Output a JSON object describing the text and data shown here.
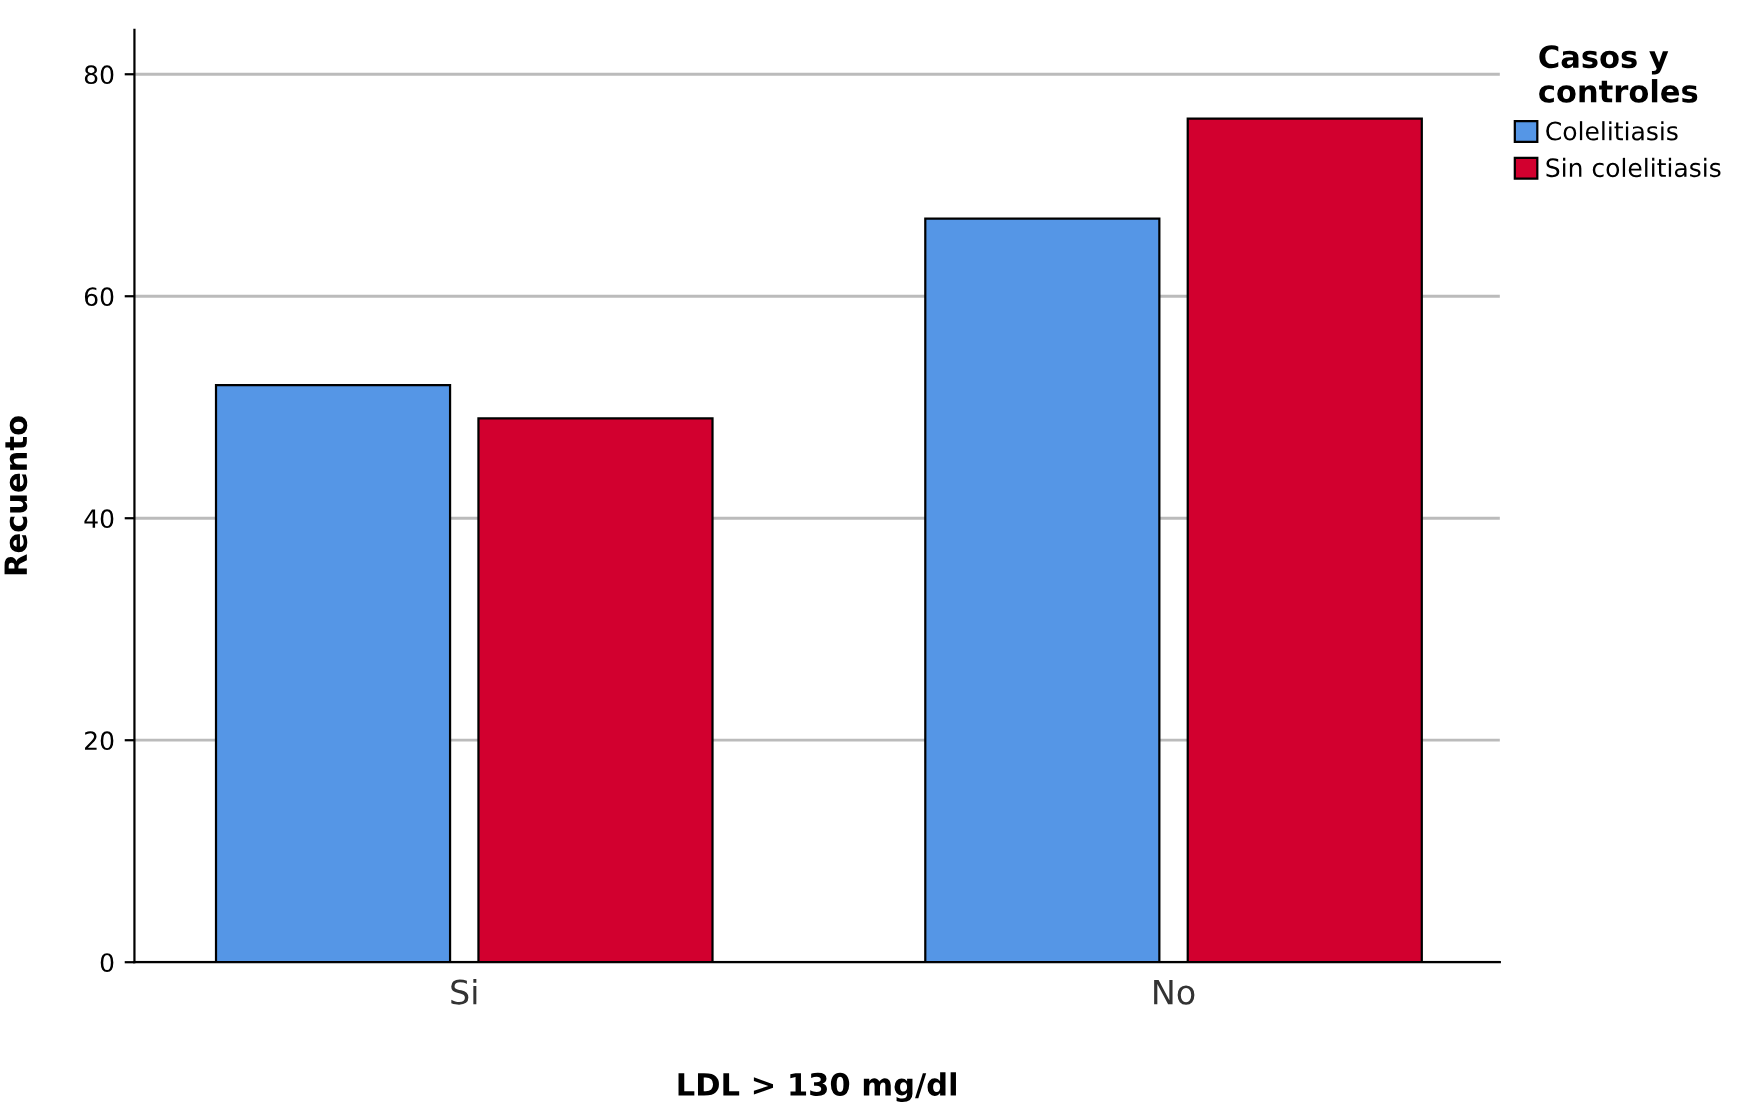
{
  "chart_data": {
    "type": "bar",
    "xlabel": "LDL > 130 mg/dl",
    "ylabel": "Recuento",
    "legend_title": "Casos y\ncontroles",
    "categories": [
      "Si",
      "No"
    ],
    "series": [
      {
        "name": "Colelitiasis",
        "color": "#5596e6",
        "values": [
          52,
          67
        ]
      },
      {
        "name": "Sin colelitiasis",
        "color": "#d2002f",
        "values": [
          49,
          76
        ]
      }
    ],
    "ylim": [
      0,
      84
    ],
    "yticks": [
      0,
      20,
      40,
      60,
      80
    ],
    "grid": "y",
    "legend": "top right"
  }
}
